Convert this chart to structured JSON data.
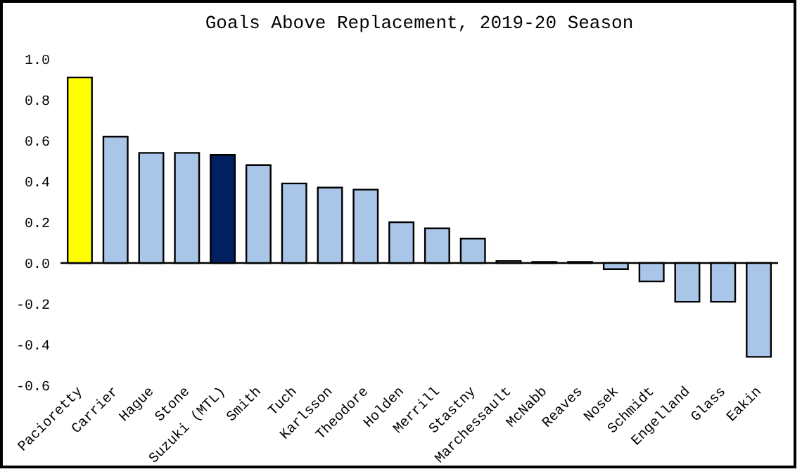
{
  "chart_data": {
    "type": "bar",
    "title": "Goals Above Replacement, 2019-20 Season",
    "categories": [
      "Pacioretty",
      "Carrier",
      "Hague",
      "Stone",
      "Suzuki (MTL)",
      "Smith",
      "Tuch",
      "Karlsson",
      "Theodore",
      "Holden",
      "Merrill",
      "Stastny",
      "Marchessault",
      "McNabb",
      "Reaves",
      "Nosek",
      "Schmidt",
      "Engelland",
      "Glass",
      "Eakin"
    ],
    "values": [
      0.91,
      0.62,
      0.54,
      0.54,
      0.53,
      0.48,
      0.39,
      0.37,
      0.36,
      0.2,
      0.17,
      0.12,
      0.01,
      0.005,
      0.005,
      -0.03,
      -0.09,
      -0.19,
      -0.19,
      -0.46
    ],
    "colors": [
      "#ffff00",
      "#a9c6e8",
      "#a9c6e8",
      "#a9c6e8",
      "#002060",
      "#a9c6e8",
      "#a9c6e8",
      "#a9c6e8",
      "#a9c6e8",
      "#a9c6e8",
      "#a9c6e8",
      "#a9c6e8",
      "#a9c6e8",
      "#a9c6e8",
      "#a9c6e8",
      "#a9c6e8",
      "#a9c6e8",
      "#a9c6e8",
      "#a9c6e8",
      "#a9c6e8"
    ],
    "ylim": [
      -0.6,
      1.0
    ],
    "yticks": [
      {
        "value": -0.6,
        "label": "-0.6"
      },
      {
        "value": -0.4,
        "label": "-0.4"
      },
      {
        "value": -0.2,
        "label": "-0.2"
      },
      {
        "value": 0,
        "label": "0.0"
      },
      {
        "value": 0.2,
        "label": "0.2"
      },
      {
        "value": 0.4,
        "label": "0.4"
      },
      {
        "value": 0.6,
        "label": "0.6"
      },
      {
        "value": 0.8,
        "label": "0.8"
      },
      {
        "value": 1,
        "label": "1.0"
      }
    ],
    "ref_lines": [
      {
        "axis": "y",
        "value": 0,
        "color": "#000000"
      }
    ],
    "grid": false
  }
}
